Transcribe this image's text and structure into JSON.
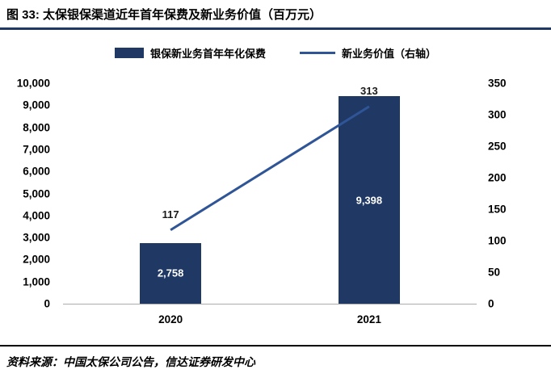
{
  "header": {
    "title": "图 33:  太保银保渠道近年首年保费及新业务价值（百万元）",
    "accent_color": "#1F3864"
  },
  "legend": [
    {
      "label": "银保新业务首年年化保费",
      "type": "bar"
    },
    {
      "label": "新业务价值（右轴）",
      "type": "line"
    }
  ],
  "chart_data": {
    "type": "bar",
    "title": "太保银保渠道近年首年保费及新业务价值（百万元）",
    "categories": [
      "2020",
      "2021"
    ],
    "series": [
      {
        "name": "银保新业务首年年化保费",
        "type": "bar",
        "axis": "left",
        "values": [
          2758,
          9398
        ],
        "labels": [
          "2,758",
          "9,398"
        ],
        "color": "#1F3864"
      },
      {
        "name": "新业务价值（右轴）",
        "type": "line",
        "axis": "right",
        "values": [
          117,
          313
        ],
        "labels": [
          "117",
          "313"
        ],
        "color": "#2F5597"
      }
    ],
    "left_axis": {
      "min": 0,
      "max": 10000,
      "ticks": [
        "10,000",
        "9,000",
        "8,000",
        "7,000",
        "6,000",
        "5,000",
        "4,000",
        "3,000",
        "2,000",
        "1,000",
        "0"
      ]
    },
    "right_axis": {
      "min": 0,
      "max": 350,
      "ticks": [
        "350",
        "300",
        "250",
        "200",
        "150",
        "100",
        "50",
        "0"
      ]
    },
    "grid": false,
    "legend_position": "top"
  },
  "footer": {
    "source": "资料来源：中国太保公司公告，信达证券研发中心"
  }
}
